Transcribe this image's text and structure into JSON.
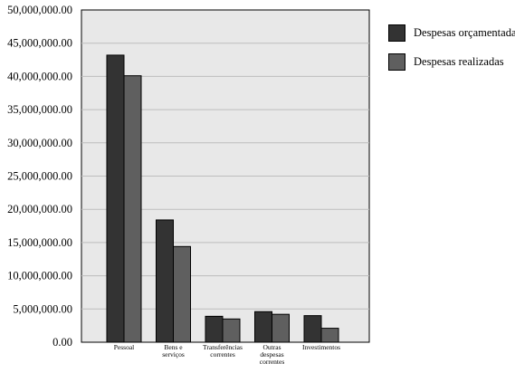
{
  "chart_data": {
    "type": "bar",
    "categories": [
      [
        "Pessoal"
      ],
      [
        "Bens e",
        "serviços"
      ],
      [
        "Transferências",
        "correntes"
      ],
      [
        "Outras",
        "despesas",
        "correntes"
      ],
      [
        "Investimentos"
      ]
    ],
    "series": [
      {
        "name": "Despesas orçamentadas",
        "color": "#333333",
        "values": [
          43200000,
          18400000,
          3900000,
          4600000,
          4000000
        ]
      },
      {
        "name": "Despesas realizadas",
        "color": "#5f5f5f",
        "values": [
          40100000,
          14400000,
          3500000,
          4200000,
          2100000
        ]
      }
    ],
    "ylim": [
      0,
      50000000
    ],
    "yticks": [
      "0.00",
      "5,000,000.00",
      "10,000,000.00",
      "15,000,000.00",
      "20,000,000.00",
      "25,000,000.00",
      "30,000,000.00",
      "35,000,000.00",
      "40,000,000.00",
      "45,000,000.00",
      "50,000,000.00"
    ],
    "grid": true,
    "plot_background": "#e8e8e8",
    "legend_position": "right",
    "title": "",
    "xlabel": "",
    "ylabel": ""
  }
}
